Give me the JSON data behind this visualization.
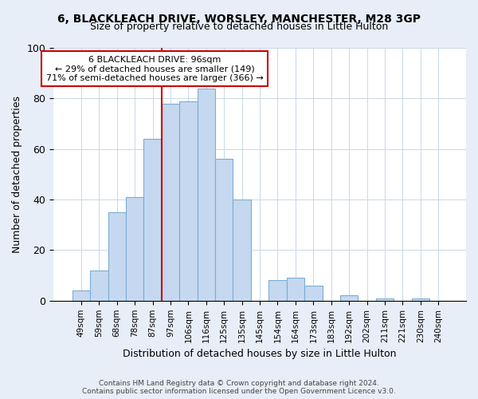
{
  "title": "6, BLACKLEACH DRIVE, WORSLEY, MANCHESTER, M28 3GP",
  "subtitle": "Size of property relative to detached houses in Little Hulton",
  "xlabel": "Distribution of detached houses by size in Little Hulton",
  "ylabel": "Number of detached properties",
  "bar_labels": [
    "49sqm",
    "59sqm",
    "68sqm",
    "78sqm",
    "87sqm",
    "97sqm",
    "106sqm",
    "116sqm",
    "125sqm",
    "135sqm",
    "145sqm",
    "154sqm",
    "164sqm",
    "173sqm",
    "183sqm",
    "192sqm",
    "202sqm",
    "211sqm",
    "221sqm",
    "230sqm",
    "240sqm"
  ],
  "bar_values": [
    4,
    12,
    35,
    41,
    64,
    78,
    79,
    84,
    56,
    40,
    0,
    8,
    9,
    6,
    0,
    2,
    0,
    1,
    0,
    1,
    0
  ],
  "bar_color": "#c5d8f0",
  "bar_edgecolor": "#7aadd4",
  "vline_x": 4.5,
  "vline_color": "#cc0000",
  "ylim": [
    0,
    100
  ],
  "annotation_line1": "6 BLACKLEACH DRIVE: 96sqm",
  "annotation_line2": "← 29% of detached houses are smaller (149)",
  "annotation_line3": "71% of semi-detached houses are larger (366) →",
  "annotation_box_edgecolor": "#cc0000",
  "annotation_box_facecolor": "#ffffff",
  "footer_line1": "Contains HM Land Registry data © Crown copyright and database right 2024.",
  "footer_line2": "Contains public sector information licensed under the Open Government Licence v3.0.",
  "bg_color": "#e8eef8",
  "plot_bg_color": "#ffffff"
}
